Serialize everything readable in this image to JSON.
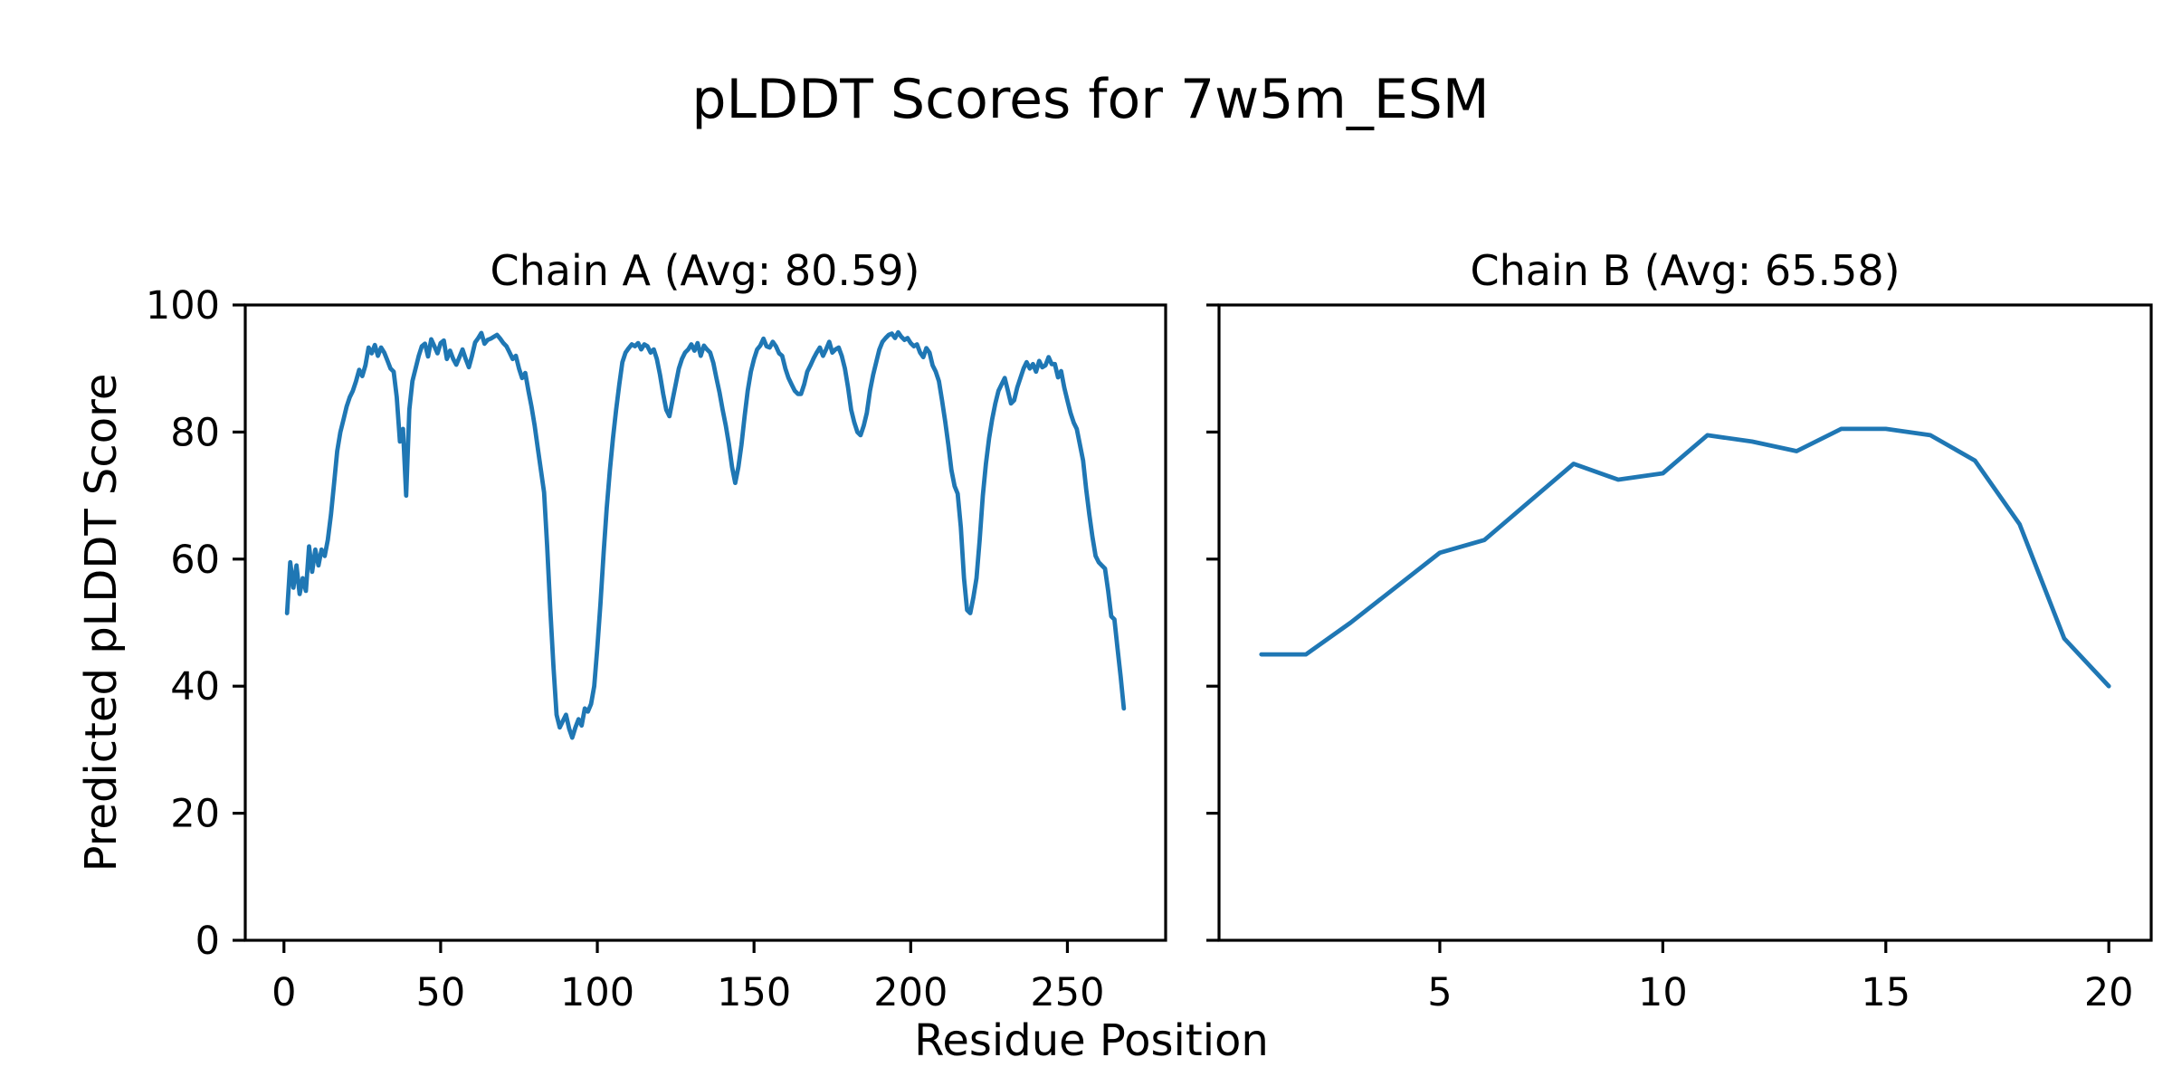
{
  "figure": {
    "suptitle": "pLDDT Scores for 7w5m_ESM",
    "xlabel": "Residue Position",
    "ylabel": "Predicted pLDDT Score",
    "background": "#ffffff",
    "spine_color": "#000000",
    "line_color": "#1f77b4"
  },
  "chart_data": [
    {
      "type": "line",
      "title": "Chain A (Avg: 80.59)",
      "avg": 80.59,
      "xlabel_shared": "Residue Position",
      "ylabel_shared": "Predicted pLDDT Score",
      "xlim": [
        -12.35,
        281.35
      ],
      "ylim": [
        0,
        100
      ],
      "xticks": [
        0,
        50,
        100,
        150,
        200,
        250
      ],
      "yticks": [
        0,
        20,
        40,
        60,
        80,
        100
      ],
      "show_ytick_labels": true,
      "grid": false,
      "legend": "none",
      "series": [
        {
          "name": "Chain A pLDDT",
          "x_start": 1,
          "values": [
            51.5,
            59.5,
            55.5,
            59,
            54.5,
            57,
            55,
            62,
            58,
            61.5,
            59,
            61.5,
            60.5,
            63,
            67,
            72,
            77,
            80,
            82,
            84,
            85.5,
            86.5,
            88,
            89.8,
            88.8,
            90.5,
            93.3,
            92.4,
            93.7,
            92,
            93.3,
            92.5,
            91.3,
            90,
            89.5,
            85.5,
            78.5,
            80.5,
            70,
            83.5,
            88,
            90,
            92,
            93.5,
            93.9,
            91.9,
            94.6,
            93.5,
            92.4,
            94,
            94.4,
            91.5,
            92.8,
            91.5,
            90.6,
            91.8,
            93,
            91.5,
            90.2,
            92,
            94.1,
            94.8,
            95.6,
            93.9,
            94.5,
            94.7,
            95,
            95.3,
            94.7,
            94,
            93.5,
            92.5,
            91.5,
            92,
            90,
            88.5,
            89.3,
            86.5,
            84,
            81,
            77.5,
            74,
            70.5,
            62,
            52,
            43,
            35.5,
            33.5,
            34.5,
            35.5,
            33.3,
            31.9,
            33.5,
            34.8,
            33.8,
            36.5,
            36,
            37.2,
            40,
            46,
            53,
            61,
            68,
            74,
            79,
            83.5,
            87.5,
            91,
            92.5,
            93.2,
            93.8,
            93.5,
            94,
            93,
            93.8,
            93.5,
            92.5,
            93,
            91.5,
            89,
            86,
            83.5,
            82.5,
            85,
            87.5,
            90,
            91.5,
            92.5,
            93,
            93.8,
            92.8,
            94,
            92,
            93.6,
            93,
            92.5,
            90.9,
            88.5,
            86.2,
            83.5,
            81,
            78,
            74.5,
            72,
            74.5,
            78,
            82.5,
            86.5,
            89.5,
            91.5,
            93,
            93.6,
            94.7,
            93.5,
            93.3,
            94.2,
            93.5,
            92.4,
            92,
            90,
            88.5,
            87.5,
            86.5,
            86,
            86,
            87.5,
            89.5,
            90.5,
            91.6,
            92.5,
            93.3,
            92,
            93,
            94.2,
            92.5,
            93,
            93.3,
            92,
            90,
            87,
            83.5,
            81.5,
            80,
            79.5,
            81,
            83,
            86.5,
            89,
            91,
            93,
            94.2,
            94.8,
            95.3,
            95.5,
            94.8,
            95.7,
            95,
            94.5,
            94.8,
            94,
            93.5,
            93.8,
            92.5,
            91.8,
            93.2,
            92.5,
            90.5,
            89.5,
            88,
            85,
            81.7,
            78,
            74,
            71.5,
            70.3,
            65,
            57,
            52,
            51.5,
            54,
            57,
            63,
            70,
            75,
            79,
            82,
            84.5,
            86.5,
            87.5,
            88.5,
            86.5,
            84.5,
            85,
            87,
            88.5,
            90,
            91,
            90,
            90.7,
            89.5,
            91.2,
            90.2,
            90.5,
            91.8,
            90.7,
            90.7,
            88.6,
            89.6,
            87,
            85,
            83,
            81.5,
            80.5,
            78,
            75.5,
            71,
            67,
            63.5,
            60.5,
            59.5,
            59,
            58.5,
            55,
            51,
            50.5,
            46,
            41.5,
            36.5
          ]
        }
      ]
    },
    {
      "type": "line",
      "title": "Chain B (Avg: 65.58)",
      "avg": 65.58,
      "xlabel_shared": "Residue Position",
      "xlim": [
        0.05,
        20.95
      ],
      "ylim": [
        0,
        100
      ],
      "xticks": [
        5,
        10,
        15,
        20
      ],
      "yticks": [
        0,
        20,
        40,
        60,
        80,
        100
      ],
      "show_ytick_labels": false,
      "grid": false,
      "legend": "none",
      "series": [
        {
          "name": "Chain B pLDDT",
          "x_start": 1,
          "values": [
            45,
            45,
            50,
            55.5,
            61,
            63,
            69,
            75,
            72.5,
            73.5,
            79.5,
            78.5,
            77,
            80.5,
            80.5,
            79.5,
            75.5,
            65.5,
            47.5,
            40
          ]
        }
      ]
    }
  ]
}
